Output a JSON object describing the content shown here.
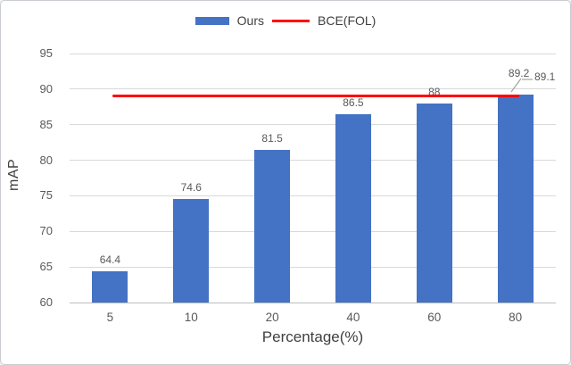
{
  "chart_data": {
    "type": "bar",
    "title": "",
    "categories": [
      "5",
      "10",
      "20",
      "40",
      "60",
      "80"
    ],
    "series": [
      {
        "name": "Ours",
        "type": "bar",
        "color": "#4472C4",
        "values": [
          64.4,
          74.6,
          81.5,
          86.5,
          88,
          89.2
        ],
        "data_labels": [
          "64.4",
          "74.6",
          "81.5",
          "86.5",
          "88",
          "89.2"
        ]
      },
      {
        "name": "BCE(FOL)",
        "type": "line",
        "color": "#FF0000",
        "values": [
          89.1,
          89.1,
          89.1,
          89.1,
          89.1,
          89.1
        ],
        "data_label": "89.1"
      }
    ],
    "xlabel": "Percentage(%)",
    "ylabel": "mAP",
    "ylim": [
      60,
      95
    ],
    "ytick_interval": 5,
    "yticks": [
      "60",
      "65",
      "70",
      "75",
      "80",
      "85",
      "90",
      "95"
    ],
    "grid": true,
    "legend_position": "top-center"
  },
  "colors": {
    "bar": "#4472C4",
    "line": "#FF0000",
    "gridline": "#D9D9D9",
    "axis_line": "#BDBDBD",
    "tick_text": "#595959",
    "data_label_text": "#595959",
    "axis_title_text": "#3F3F3F",
    "leader_line": "#A6A6A6",
    "border": "#C9CDD2",
    "background": "#FFFFFF"
  }
}
